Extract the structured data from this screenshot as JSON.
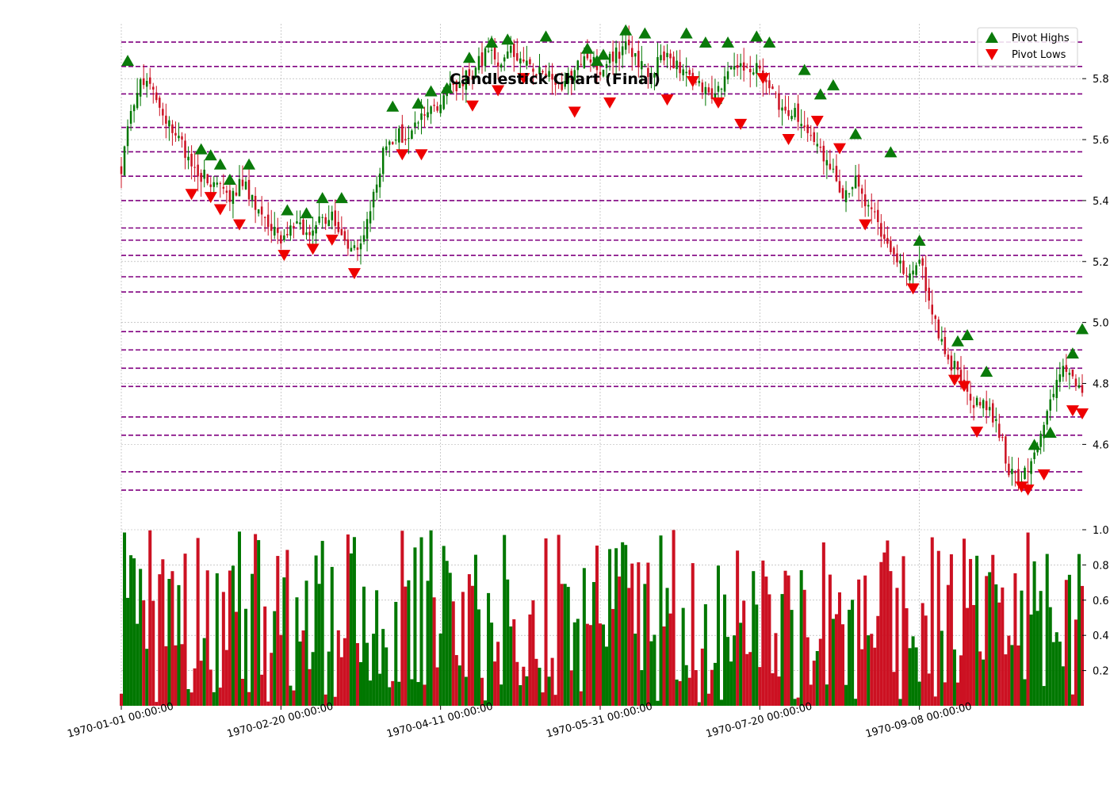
{
  "chart_data": {
    "type": "candlestick",
    "title": "Candlestick Chart (Final)",
    "colors": {
      "up": "#007700",
      "down": "#cc1122",
      "pivot_high": "#0a7a0a",
      "pivot_low": "#ee0000",
      "level": "#800080",
      "grid": "#aaaaaa"
    },
    "price_axis": {
      "ylim": [
        4.32,
        5.98
      ],
      "ticks": [
        "4.6",
        "4.8",
        "5.0",
        "5.2",
        "5.4",
        "5.6",
        "5.8"
      ],
      "side": "right"
    },
    "volume_axis": {
      "ylim": [
        0.0,
        1.0
      ],
      "ticks": [
        "0.2",
        "0.4",
        "0.6",
        "0.8",
        "1.0"
      ],
      "side": "right"
    },
    "x_axis": {
      "start_date": "1970-01-01",
      "end_date": "1970-10-29",
      "tick_labels": [
        "1970-01-01 00:00:00",
        "1970-02-20 00:00:00",
        "1970-04-11 00:00:00",
        "1970-05-31 00:00:00",
        "1970-07-20 00:00:00",
        "1970-09-08 00:00:00"
      ],
      "tick_dates": [
        "1970-01-01",
        "1970-02-20",
        "1970-04-11",
        "1970-05-31",
        "1970-07-20",
        "1970-09-08"
      ]
    },
    "close_path": [
      [
        "1970-01-01",
        5.5
      ],
      [
        "1970-01-04",
        5.68
      ],
      [
        "1970-01-07",
        5.8
      ],
      [
        "1970-01-10",
        5.8
      ],
      [
        "1970-01-14",
        5.66
      ],
      [
        "1970-01-19",
        5.62
      ],
      [
        "1970-01-23",
        5.5
      ],
      [
        "1970-01-27",
        5.48
      ],
      [
        "1970-01-31",
        5.45
      ],
      [
        "1970-02-04",
        5.42
      ],
      [
        "1970-02-08",
        5.46
      ],
      [
        "1970-02-12",
        5.38
      ],
      [
        "1970-02-16",
        5.32
      ],
      [
        "1970-02-20",
        5.26
      ],
      [
        "1970-02-24",
        5.32
      ],
      [
        "1970-02-28",
        5.3
      ],
      [
        "1970-03-04",
        5.33
      ],
      [
        "1970-03-08",
        5.35
      ],
      [
        "1970-03-12",
        5.28
      ],
      [
        "1970-03-16",
        5.22
      ],
      [
        "1970-03-20",
        5.38
      ],
      [
        "1970-03-24",
        5.55
      ],
      [
        "1970-03-28",
        5.62
      ],
      [
        "1970-04-01",
        5.6
      ],
      [
        "1970-04-05",
        5.67
      ],
      [
        "1970-04-09",
        5.7
      ],
      [
        "1970-04-13",
        5.75
      ],
      [
        "1970-04-17",
        5.79
      ],
      [
        "1970-04-21",
        5.82
      ],
      [
        "1970-04-25",
        5.88
      ],
      [
        "1970-04-29",
        5.86
      ],
      [
        "1970-05-03",
        5.9
      ],
      [
        "1970-05-07",
        5.85
      ],
      [
        "1970-05-11",
        5.83
      ],
      [
        "1970-05-15",
        5.8
      ],
      [
        "1970-05-19",
        5.76
      ],
      [
        "1970-05-23",
        5.83
      ],
      [
        "1970-05-27",
        5.88
      ],
      [
        "1970-05-31",
        5.82
      ],
      [
        "1970-06-04",
        5.88
      ],
      [
        "1970-06-08",
        5.9
      ],
      [
        "1970-06-12",
        5.86
      ],
      [
        "1970-06-16",
        5.82
      ],
      [
        "1970-06-20",
        5.88
      ],
      [
        "1970-06-24",
        5.85
      ],
      [
        "1970-06-28",
        5.8
      ],
      [
        "1970-07-02",
        5.78
      ],
      [
        "1970-07-06",
        5.75
      ],
      [
        "1970-07-10",
        5.8
      ],
      [
        "1970-07-14",
        5.85
      ],
      [
        "1970-07-18",
        5.84
      ],
      [
        "1970-07-22",
        5.8
      ],
      [
        "1970-07-26",
        5.7
      ],
      [
        "1970-07-30",
        5.7
      ],
      [
        "1970-08-03",
        5.65
      ],
      [
        "1970-08-07",
        5.6
      ],
      [
        "1970-08-11",
        5.5
      ],
      [
        "1970-08-15",
        5.42
      ],
      [
        "1970-08-19",
        5.46
      ],
      [
        "1970-08-23",
        5.38
      ],
      [
        "1970-08-27",
        5.3
      ],
      [
        "1970-08-31",
        5.22
      ],
      [
        "1970-09-04",
        5.15
      ],
      [
        "1970-09-08",
        5.2
      ],
      [
        "1970-09-12",
        5.05
      ],
      [
        "1970-09-16",
        4.88
      ],
      [
        "1970-09-20",
        4.85
      ],
      [
        "1970-09-24",
        4.72
      ],
      [
        "1970-09-28",
        4.74
      ],
      [
        "1970-10-02",
        4.68
      ],
      [
        "1970-10-06",
        4.52
      ],
      [
        "1970-10-10",
        4.48
      ],
      [
        "1970-10-14",
        4.58
      ],
      [
        "1970-10-18",
        4.7
      ],
      [
        "1970-10-22",
        4.85
      ],
      [
        "1970-10-26",
        4.82
      ],
      [
        "1970-10-29",
        4.75
      ]
    ],
    "pivot_highs": [
      [
        "1970-01-03",
        5.86
      ],
      [
        "1970-01-26",
        5.57
      ],
      [
        "1970-01-29",
        5.55
      ],
      [
        "1970-02-01",
        5.52
      ],
      [
        "1970-02-04",
        5.47
      ],
      [
        "1970-02-10",
        5.52
      ],
      [
        "1970-02-22",
        5.37
      ],
      [
        "1970-02-28",
        5.36
      ],
      [
        "1970-03-05",
        5.41
      ],
      [
        "1970-03-11",
        5.41
      ],
      [
        "1970-03-27",
        5.71
      ],
      [
        "1970-04-04",
        5.72
      ],
      [
        "1970-04-08",
        5.76
      ],
      [
        "1970-04-13",
        5.77
      ],
      [
        "1970-04-20",
        5.87
      ],
      [
        "1970-04-27",
        5.92
      ],
      [
        "1970-05-02",
        5.93
      ],
      [
        "1970-05-14",
        5.94
      ],
      [
        "1970-05-27",
        5.9
      ],
      [
        "1970-05-30",
        5.86
      ],
      [
        "1970-06-01",
        5.88
      ],
      [
        "1970-06-08",
        5.96
      ],
      [
        "1970-06-14",
        5.95
      ],
      [
        "1970-06-27",
        5.95
      ],
      [
        "1970-07-03",
        5.92
      ],
      [
        "1970-07-10",
        5.92
      ],
      [
        "1970-07-19",
        5.94
      ],
      [
        "1970-07-23",
        5.92
      ],
      [
        "1970-08-03",
        5.83
      ],
      [
        "1970-08-08",
        5.75
      ],
      [
        "1970-08-12",
        5.78
      ],
      [
        "1970-08-19",
        5.62
      ],
      [
        "1970-08-30",
        5.56
      ],
      [
        "1970-09-08",
        5.27
      ],
      [
        "1970-09-20",
        4.94
      ],
      [
        "1970-09-23",
        4.96
      ],
      [
        "1970-09-29",
        4.84
      ],
      [
        "1970-10-14",
        4.6
      ],
      [
        "1970-10-19",
        4.64
      ],
      [
        "1970-10-26",
        4.9
      ],
      [
        "1970-10-29",
        4.98
      ]
    ],
    "pivot_lows": [
      [
        "1970-01-23",
        5.42
      ],
      [
        "1970-01-29",
        5.41
      ],
      [
        "1970-02-01",
        5.37
      ],
      [
        "1970-02-07",
        5.32
      ],
      [
        "1970-02-21",
        5.22
      ],
      [
        "1970-03-02",
        5.24
      ],
      [
        "1970-03-08",
        5.27
      ],
      [
        "1970-03-15",
        5.16
      ],
      [
        "1970-03-30",
        5.55
      ],
      [
        "1970-04-05",
        5.55
      ],
      [
        "1970-04-21",
        5.71
      ],
      [
        "1970-04-29",
        5.76
      ],
      [
        "1970-05-07",
        5.8
      ],
      [
        "1970-05-23",
        5.69
      ],
      [
        "1970-06-03",
        5.72
      ],
      [
        "1970-06-21",
        5.73
      ],
      [
        "1970-06-29",
        5.79
      ],
      [
        "1970-07-07",
        5.72
      ],
      [
        "1970-07-14",
        5.65
      ],
      [
        "1970-07-21",
        5.8
      ],
      [
        "1970-07-29",
        5.6
      ],
      [
        "1970-08-07",
        5.66
      ],
      [
        "1970-08-14",
        5.57
      ],
      [
        "1970-08-22",
        5.32
      ],
      [
        "1970-09-06",
        5.11
      ],
      [
        "1970-09-19",
        4.81
      ],
      [
        "1970-09-22",
        4.79
      ],
      [
        "1970-09-26",
        4.64
      ],
      [
        "1970-10-10",
        4.46
      ],
      [
        "1970-10-12",
        4.45
      ],
      [
        "1970-10-17",
        4.5
      ],
      [
        "1970-10-26",
        4.71
      ],
      [
        "1970-10-29",
        4.7
      ]
    ],
    "levels": [
      5.92,
      5.84,
      5.75,
      5.64,
      5.56,
      5.48,
      5.4,
      5.31,
      5.27,
      5.22,
      5.15,
      5.1,
      4.97,
      4.91,
      4.85,
      4.79,
      4.69,
      4.63,
      4.51,
      4.45
    ],
    "volume": {
      "seed": 7,
      "range": [
        0.02,
        1.0
      ]
    },
    "legend": {
      "position": "top-right",
      "entries": [
        {
          "label": "Pivot Highs",
          "marker": "triangle-up",
          "color": "#0a7a0a"
        },
        {
          "label": "Pivot Lows",
          "marker": "triangle-down",
          "color": "#ee0000"
        }
      ]
    },
    "grid": true
  }
}
